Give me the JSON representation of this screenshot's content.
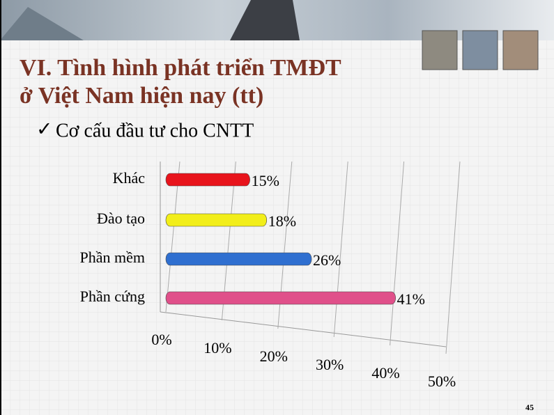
{
  "slide": {
    "title_line1": "VI. Tình hình phát triển TMĐT",
    "title_line2": "ở Việt Nam hiện nay (tt)",
    "bullet": "Cơ cấu đầu tư cho CNTT",
    "page_number": "45"
  },
  "chart_data": {
    "type": "bar",
    "orientation": "horizontal",
    "categories": [
      "Khác",
      "Đào tạo",
      "Phần mềm",
      "Phần cứng"
    ],
    "values": [
      15,
      18,
      26,
      41
    ],
    "value_labels": [
      "15%",
      "18%",
      "26%",
      "41%"
    ],
    "colors": [
      "#e8141c",
      "#f2ee1a",
      "#2f6fd0",
      "#e0508a"
    ],
    "xlim": [
      0,
      50
    ],
    "xticks": [
      {
        "value": 0,
        "label": "0%"
      },
      {
        "value": 10,
        "label": "10%"
      },
      {
        "value": 20,
        "label": "20%"
      },
      {
        "value": 30,
        "label": "30%"
      },
      {
        "value": 40,
        "label": "40%"
      },
      {
        "value": 50,
        "label": "50%"
      }
    ],
    "grid": true
  }
}
